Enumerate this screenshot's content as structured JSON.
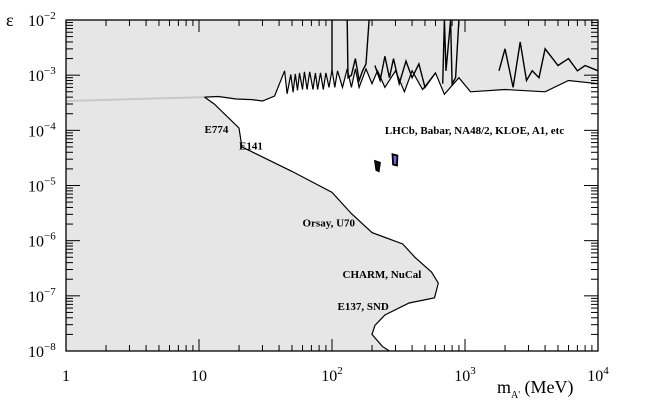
{
  "chart_data": {
    "type": "area",
    "title": "",
    "xlabel": {
      "base": "m",
      "subscript": "A'",
      "unit": "(MeV)"
    },
    "ylabel": "ε",
    "xscale": "log",
    "yscale": "log",
    "xlim": [
      1,
      10000
    ],
    "ylim": [
      1e-08,
      0.01
    ],
    "grid": false,
    "legend": "none",
    "x_ticks": [
      {
        "value": 1,
        "base": "1",
        "exp": ""
      },
      {
        "value": 10,
        "base": "10",
        "exp": ""
      },
      {
        "value": 100,
        "base": "10",
        "exp": "2"
      },
      {
        "value": 1000,
        "base": "10",
        "exp": "3"
      },
      {
        "value": 10000,
        "base": "10",
        "exp": "4"
      }
    ],
    "y_ticks": [
      {
        "value": 0.01,
        "base": "10",
        "exp": "−2"
      },
      {
        "value": 0.001,
        "base": "10",
        "exp": "−3"
      },
      {
        "value": 0.0001,
        "base": "10",
        "exp": "−4"
      },
      {
        "value": 1e-05,
        "base": "10",
        "exp": "−5"
      },
      {
        "value": 1e-06,
        "base": "10",
        "exp": "−6"
      },
      {
        "value": 1e-07,
        "base": "10",
        "exp": "−7"
      },
      {
        "value": 1e-08,
        "base": "10",
        "exp": "−8"
      }
    ],
    "colors": {
      "excluded_fill": "#e6e6e6",
      "boundary": "#000000",
      "faint_line": "#c8c8c8",
      "island_fill": "#6a6ad8"
    },
    "regions": [
      {
        "name": "beam dump excluded region",
        "boundary": [
          [
            11,
            0.0004
          ],
          [
            13,
            0.0003
          ],
          [
            20,
            0.00011
          ],
          [
            21,
            5e-05
          ],
          [
            50,
            1.8e-05
          ],
          [
            100,
            7.5e-06
          ],
          [
            140,
            3.1e-06
          ],
          [
            200,
            1.4e-06
          ],
          [
            340,
            8.7e-07
          ],
          [
            420,
            5e-07
          ],
          [
            560,
            2.7e-07
          ],
          [
            630,
            1.7e-07
          ],
          [
            590,
            9.2e-08
          ],
          [
            380,
            7.4e-08
          ],
          [
            250,
            4.5e-08
          ],
          [
            210,
            2.9e-08
          ],
          [
            200,
            2e-08
          ],
          [
            240,
            1.2e-08
          ],
          [
            270,
            1e-08
          ]
        ]
      },
      {
        "name": "collider excluded region",
        "boundary": [
          [
            11,
            0.0004
          ],
          [
            14,
            0.00041
          ],
          [
            19,
            0.00037
          ],
          [
            25,
            0.00036
          ],
          [
            30,
            0.00034
          ],
          [
            37,
            0.00042
          ],
          [
            44,
            0.0012
          ],
          [
            46,
            0.00046
          ],
          [
            49,
            0.00103
          ],
          [
            51,
            0.00049
          ],
          [
            53,
            0.00105
          ],
          [
            55,
            0.00053
          ],
          [
            57,
            0.0011
          ],
          [
            60,
            0.00055
          ],
          [
            62,
            0.00115
          ],
          [
            65,
            0.00055
          ],
          [
            68,
            0.00115
          ],
          [
            72,
            0.00055
          ],
          [
            75,
            0.0011
          ],
          [
            78,
            0.00055
          ],
          [
            82,
            0.0011
          ],
          [
            86,
            0.00055
          ],
          [
            90,
            0.0011
          ],
          [
            95,
            0.0006
          ],
          [
            100,
            0.00125
          ],
          [
            105,
            0.0006
          ],
          [
            110,
            0.0012
          ],
          [
            120,
            0.0006
          ],
          [
            130,
            0.0013
          ],
          [
            140,
            0.0006
          ],
          [
            150,
            0.0013
          ],
          [
            160,
            0.0006
          ],
          [
            180,
            0.0013
          ],
          [
            200,
            0.0007
          ],
          [
            220,
            0.0012
          ],
          [
            250,
            0.0006
          ],
          [
            300,
            0.0012
          ],
          [
            350,
            0.0005
          ],
          [
            400,
            0.0012
          ],
          [
            480,
            0.00055
          ],
          [
            600,
            0.0011
          ],
          [
            700,
            0.00045
          ],
          [
            900,
            0.0009
          ],
          [
            1100,
            0.0005
          ],
          [
            2000,
            0.00055
          ],
          [
            4000,
            0.0005
          ],
          [
            6000,
            0.0008
          ],
          [
            10000,
            0.0007
          ]
        ],
        "upper_curves": [
          [
            [
              100,
              0.01
            ],
            [
              100,
              0.0012
            ]
          ],
          [
            [
              130,
              0.01
            ],
            [
              132,
              0.0009
            ],
            [
              140,
              0.001
            ],
            [
              150,
              0.002
            ],
            [
              160,
              0.0008
            ],
            [
              170,
              0.0012
            ],
            [
              180,
              0.0016
            ],
            [
              190,
              0.01
            ]
          ],
          [
            [
              210,
              0.0015
            ],
            [
              230,
              0.0008
            ],
            [
              250,
              0.0022
            ],
            [
              270,
              0.0009
            ],
            [
              290,
              0.002
            ],
            [
              320,
              0.0007
            ],
            [
              360,
              0.0018
            ],
            [
              400,
              0.0009
            ],
            [
              450,
              0.0016
            ],
            [
              500,
              0.0006
            ],
            [
              600,
              0.0011
            ]
          ],
          [
            [
              680,
              0.0007
            ],
            [
              700,
              0.01
            ],
            [
              720,
              0.0012
            ],
            [
              780,
              0.01
            ],
            [
              800,
              0.0007
            ],
            [
              850,
              0.0009
            ],
            [
              900,
              0.01
            ]
          ],
          [
            [
              1800,
              0.0012
            ],
            [
              2000,
              0.003
            ],
            [
              2300,
              0.0006
            ],
            [
              2600,
              0.004
            ],
            [
              2900,
              0.0008
            ],
            [
              3200,
              0.0012
            ],
            [
              3600,
              0.0009
            ],
            [
              4000,
              0.003
            ],
            [
              5000,
              0.0015
            ],
            [
              6000,
              0.002
            ],
            [
              7000,
              0.0012
            ],
            [
              8000,
              0.0015
            ],
            [
              10000,
              0.0012
            ]
          ]
        ],
        "faint_boundary": [
          [
            1,
            0.00034
          ],
          [
            11,
            0.0004
          ]
        ]
      },
      {
        "name": "small island 1",
        "boundary": [
          [
            210,
            2.8e-05
          ],
          [
            230,
            2.6e-05
          ],
          [
            225,
            1.8e-05
          ],
          [
            215,
            1.9e-05
          ]
        ]
      },
      {
        "name": "small island 2",
        "boundary": [
          [
            285,
            3.7e-05
          ],
          [
            310,
            3.5e-05
          ],
          [
            308,
            2.3e-05
          ],
          [
            288,
            2.4e-05
          ]
        ]
      }
    ],
    "annotations": [
      {
        "text": "E774",
        "x": 11,
        "y": 9e-05
      },
      {
        "text": "E141",
        "x": 20,
        "y": 4.5e-05
      },
      {
        "text": "LHCb, Babar, NA48/2, KLOE, A1, etc",
        "x": 250,
        "y": 8.5e-05
      },
      {
        "text": "Orsay, U70",
        "x": 60,
        "y": 1.8e-06
      },
      {
        "text": "CHARM, NuCal",
        "x": 120,
        "y": 2.1e-07
      },
      {
        "text": "E137, SND",
        "x": 110,
        "y": 5.5e-08
      }
    ]
  }
}
